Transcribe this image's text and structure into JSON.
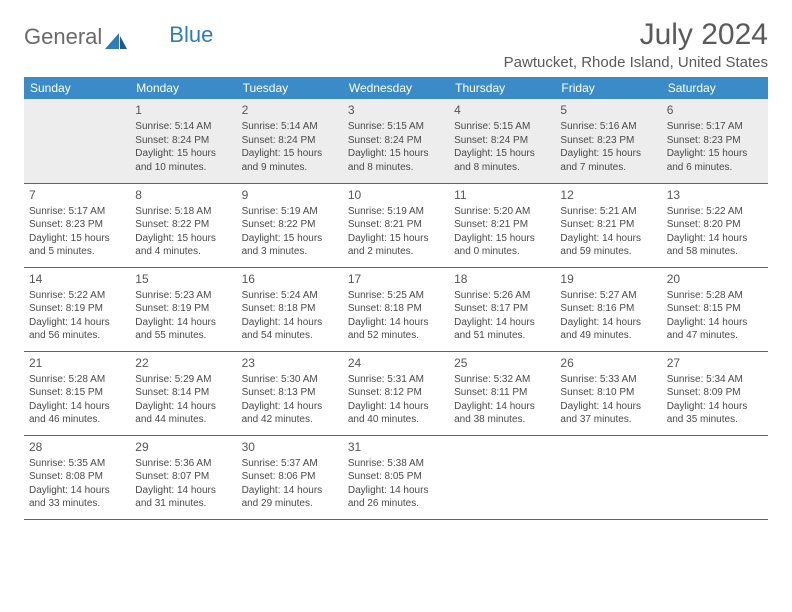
{
  "brand": {
    "part1": "General",
    "part2": "Blue"
  },
  "title": "July 2024",
  "location": "Pawtucket, Rhode Island, United States",
  "header_color": "#3b8bc8",
  "rule_color": "#2f6fa8",
  "days": [
    "Sunday",
    "Monday",
    "Tuesday",
    "Wednesday",
    "Thursday",
    "Friday",
    "Saturday"
  ],
  "weeks": [
    [
      {
        "n": "",
        "sunrise": "",
        "sunset": "",
        "daylight": ""
      },
      {
        "n": "1",
        "sunrise": "Sunrise: 5:14 AM",
        "sunset": "Sunset: 8:24 PM",
        "daylight": "Daylight: 15 hours and 10 minutes."
      },
      {
        "n": "2",
        "sunrise": "Sunrise: 5:14 AM",
        "sunset": "Sunset: 8:24 PM",
        "daylight": "Daylight: 15 hours and 9 minutes."
      },
      {
        "n": "3",
        "sunrise": "Sunrise: 5:15 AM",
        "sunset": "Sunset: 8:24 PM",
        "daylight": "Daylight: 15 hours and 8 minutes."
      },
      {
        "n": "4",
        "sunrise": "Sunrise: 5:15 AM",
        "sunset": "Sunset: 8:24 PM",
        "daylight": "Daylight: 15 hours and 8 minutes."
      },
      {
        "n": "5",
        "sunrise": "Sunrise: 5:16 AM",
        "sunset": "Sunset: 8:23 PM",
        "daylight": "Daylight: 15 hours and 7 minutes."
      },
      {
        "n": "6",
        "sunrise": "Sunrise: 5:17 AM",
        "sunset": "Sunset: 8:23 PM",
        "daylight": "Daylight: 15 hours and 6 minutes."
      }
    ],
    [
      {
        "n": "7",
        "sunrise": "Sunrise: 5:17 AM",
        "sunset": "Sunset: 8:23 PM",
        "daylight": "Daylight: 15 hours and 5 minutes."
      },
      {
        "n": "8",
        "sunrise": "Sunrise: 5:18 AM",
        "sunset": "Sunset: 8:22 PM",
        "daylight": "Daylight: 15 hours and 4 minutes."
      },
      {
        "n": "9",
        "sunrise": "Sunrise: 5:19 AM",
        "sunset": "Sunset: 8:22 PM",
        "daylight": "Daylight: 15 hours and 3 minutes."
      },
      {
        "n": "10",
        "sunrise": "Sunrise: 5:19 AM",
        "sunset": "Sunset: 8:21 PM",
        "daylight": "Daylight: 15 hours and 2 minutes."
      },
      {
        "n": "11",
        "sunrise": "Sunrise: 5:20 AM",
        "sunset": "Sunset: 8:21 PM",
        "daylight": "Daylight: 15 hours and 0 minutes."
      },
      {
        "n": "12",
        "sunrise": "Sunrise: 5:21 AM",
        "sunset": "Sunset: 8:21 PM",
        "daylight": "Daylight: 14 hours and 59 minutes."
      },
      {
        "n": "13",
        "sunrise": "Sunrise: 5:22 AM",
        "sunset": "Sunset: 8:20 PM",
        "daylight": "Daylight: 14 hours and 58 minutes."
      }
    ],
    [
      {
        "n": "14",
        "sunrise": "Sunrise: 5:22 AM",
        "sunset": "Sunset: 8:19 PM",
        "daylight": "Daylight: 14 hours and 56 minutes."
      },
      {
        "n": "15",
        "sunrise": "Sunrise: 5:23 AM",
        "sunset": "Sunset: 8:19 PM",
        "daylight": "Daylight: 14 hours and 55 minutes."
      },
      {
        "n": "16",
        "sunrise": "Sunrise: 5:24 AM",
        "sunset": "Sunset: 8:18 PM",
        "daylight": "Daylight: 14 hours and 54 minutes."
      },
      {
        "n": "17",
        "sunrise": "Sunrise: 5:25 AM",
        "sunset": "Sunset: 8:18 PM",
        "daylight": "Daylight: 14 hours and 52 minutes."
      },
      {
        "n": "18",
        "sunrise": "Sunrise: 5:26 AM",
        "sunset": "Sunset: 8:17 PM",
        "daylight": "Daylight: 14 hours and 51 minutes."
      },
      {
        "n": "19",
        "sunrise": "Sunrise: 5:27 AM",
        "sunset": "Sunset: 8:16 PM",
        "daylight": "Daylight: 14 hours and 49 minutes."
      },
      {
        "n": "20",
        "sunrise": "Sunrise: 5:28 AM",
        "sunset": "Sunset: 8:15 PM",
        "daylight": "Daylight: 14 hours and 47 minutes."
      }
    ],
    [
      {
        "n": "21",
        "sunrise": "Sunrise: 5:28 AM",
        "sunset": "Sunset: 8:15 PM",
        "daylight": "Daylight: 14 hours and 46 minutes."
      },
      {
        "n": "22",
        "sunrise": "Sunrise: 5:29 AM",
        "sunset": "Sunset: 8:14 PM",
        "daylight": "Daylight: 14 hours and 44 minutes."
      },
      {
        "n": "23",
        "sunrise": "Sunrise: 5:30 AM",
        "sunset": "Sunset: 8:13 PM",
        "daylight": "Daylight: 14 hours and 42 minutes."
      },
      {
        "n": "24",
        "sunrise": "Sunrise: 5:31 AM",
        "sunset": "Sunset: 8:12 PM",
        "daylight": "Daylight: 14 hours and 40 minutes."
      },
      {
        "n": "25",
        "sunrise": "Sunrise: 5:32 AM",
        "sunset": "Sunset: 8:11 PM",
        "daylight": "Daylight: 14 hours and 38 minutes."
      },
      {
        "n": "26",
        "sunrise": "Sunrise: 5:33 AM",
        "sunset": "Sunset: 8:10 PM",
        "daylight": "Daylight: 14 hours and 37 minutes."
      },
      {
        "n": "27",
        "sunrise": "Sunrise: 5:34 AM",
        "sunset": "Sunset: 8:09 PM",
        "daylight": "Daylight: 14 hours and 35 minutes."
      }
    ],
    [
      {
        "n": "28",
        "sunrise": "Sunrise: 5:35 AM",
        "sunset": "Sunset: 8:08 PM",
        "daylight": "Daylight: 14 hours and 33 minutes."
      },
      {
        "n": "29",
        "sunrise": "Sunrise: 5:36 AM",
        "sunset": "Sunset: 8:07 PM",
        "daylight": "Daylight: 14 hours and 31 minutes."
      },
      {
        "n": "30",
        "sunrise": "Sunrise: 5:37 AM",
        "sunset": "Sunset: 8:06 PM",
        "daylight": "Daylight: 14 hours and 29 minutes."
      },
      {
        "n": "31",
        "sunrise": "Sunrise: 5:38 AM",
        "sunset": "Sunset: 8:05 PM",
        "daylight": "Daylight: 14 hours and 26 minutes."
      },
      {
        "n": "",
        "sunrise": "",
        "sunset": "",
        "daylight": ""
      },
      {
        "n": "",
        "sunrise": "",
        "sunset": "",
        "daylight": ""
      },
      {
        "n": "",
        "sunrise": "",
        "sunset": "",
        "daylight": ""
      }
    ]
  ]
}
